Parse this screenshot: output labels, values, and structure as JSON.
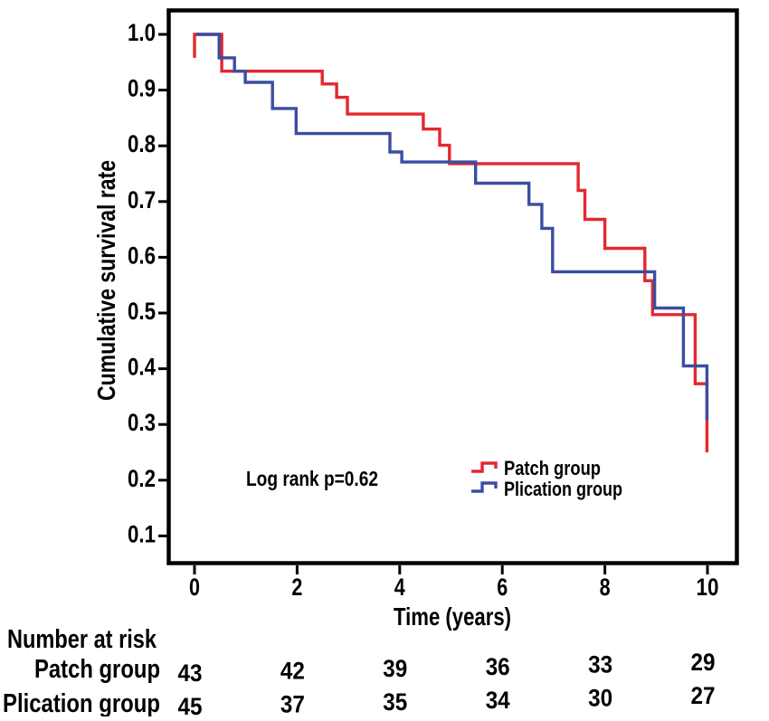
{
  "figure": {
    "background": "#ffffff",
    "axis_color": "#000000",
    "text_color": "#000000"
  },
  "chart_data": {
    "type": "line",
    "subtype": "kaplan_meier_step",
    "title": "",
    "xlabel": "Time (years)",
    "ylabel": "Cumulative survival rate",
    "annotation": "Log rank p=0.62",
    "grid": false,
    "legend_position": "inside-lower-right",
    "xlim": [
      0,
      10.6
    ],
    "ylim": [
      0.05,
      1.04
    ],
    "x_ticks": [
      0,
      2,
      4,
      6,
      8,
      10
    ],
    "x_tick_labels": [
      "0",
      "2",
      "4",
      "6",
      "8",
      "10"
    ],
    "y_ticks": [
      1.0,
      0.9,
      0.8,
      0.7,
      0.6,
      0.5,
      0.4,
      0.3,
      0.2,
      0.1
    ],
    "y_tick_labels": [
      "1.0",
      "0.9",
      "0.8",
      "0.7",
      "0.6",
      "0.5",
      "0.4",
      "0.3",
      "0.2",
      "0.1"
    ],
    "series": [
      {
        "name": "Patch group",
        "color": "#e3282e",
        "start": {
          "time": 0.0,
          "value": 1.0,
          "leading_tick_down_to": 0.958
        },
        "steps": [
          [
            0.53,
            0.934
          ],
          [
            2.49,
            0.911
          ],
          [
            2.77,
            0.887
          ],
          [
            2.98,
            0.857
          ],
          [
            4.46,
            0.83
          ],
          [
            4.78,
            0.801
          ],
          [
            4.97,
            0.768
          ],
          [
            7.48,
            0.72
          ],
          [
            7.61,
            0.668
          ],
          [
            8.0,
            0.616
          ],
          [
            8.78,
            0.558
          ],
          [
            8.93,
            0.497
          ],
          [
            9.76,
            0.373
          ],
          [
            9.99,
            0.25
          ]
        ]
      },
      {
        "name": "Plication group",
        "color": "#3b4ea1",
        "start": {
          "time": 0.03,
          "value": 1.0
        },
        "steps": [
          [
            0.48,
            0.958
          ],
          [
            0.78,
            0.934
          ],
          [
            0.99,
            0.914
          ],
          [
            1.52,
            0.867
          ],
          [
            1.98,
            0.822
          ],
          [
            3.81,
            0.789
          ],
          [
            4.04,
            0.771
          ],
          [
            5.48,
            0.733
          ],
          [
            6.52,
            0.695
          ],
          [
            6.77,
            0.652
          ],
          [
            6.98,
            0.574
          ],
          [
            8.97,
            0.509
          ],
          [
            9.53,
            0.405
          ],
          [
            9.99,
            0.308
          ]
        ]
      }
    ],
    "number_at_risk": {
      "title": "Number at risk",
      "times": [
        0,
        2,
        4,
        6,
        8,
        10
      ],
      "rows": [
        {
          "label": "Patch group",
          "counts": [
            "43",
            "42",
            "39",
            "36",
            "33",
            "29"
          ]
        },
        {
          "label": "Plication group",
          "counts": [
            "45",
            "37",
            "35",
            "34",
            "30",
            "27"
          ]
        }
      ]
    }
  }
}
